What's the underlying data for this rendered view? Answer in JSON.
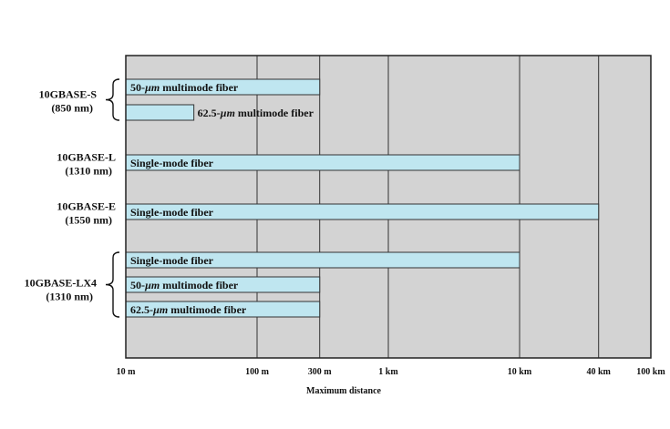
{
  "chart_data": {
    "type": "bar",
    "orientation": "horizontal",
    "xlabel": "Maximum distance",
    "x_scale": "log",
    "x_ticks": [
      {
        "value": 10,
        "label": "10 m"
      },
      {
        "value": 100,
        "label": "100 m"
      },
      {
        "value": 300,
        "label": "300 m"
      },
      {
        "value": 1000,
        "label": "1 km"
      },
      {
        "value": 10000,
        "label": "10 km"
      },
      {
        "value": 40000,
        "label": "40 km"
      },
      {
        "value": 100000,
        "label": "100 km"
      }
    ],
    "xlim": [
      10,
      100000
    ],
    "grid": "vertical",
    "colors": {
      "bar": "#bfe6f0",
      "plot_bg": "#d3d3d3",
      "border": "#222222"
    },
    "groups": [
      {
        "name": "10GBASE-S",
        "wavelength": "(850 nm)",
        "bars": [
          {
            "label": "50-µm multimode fiber",
            "value": 300,
            "label_position": "inside"
          },
          {
            "label": "62.5-µm multimode fiber",
            "value": 33,
            "label_position": "outside"
          }
        ]
      },
      {
        "name": "10GBASE-L",
        "wavelength": "(1310 nm)",
        "bars": [
          {
            "label": "Single-mode fiber",
            "value": 10000,
            "label_position": "inside"
          }
        ]
      },
      {
        "name": "10GBASE-E",
        "wavelength": "(1550 nm)",
        "bars": [
          {
            "label": "Single-mode fiber",
            "value": 40000,
            "label_position": "inside"
          }
        ]
      },
      {
        "name": "10GBASE-LX4",
        "wavelength": "(1310 nm)",
        "bars": [
          {
            "label": "Single-mode fiber",
            "value": 10000,
            "label_position": "inside"
          },
          {
            "label": "50-µm multimode fiber",
            "value": 300,
            "label_position": "inside"
          },
          {
            "label": "62.5-µm multimode fiber",
            "value": 300,
            "label_position": "inside"
          }
        ]
      }
    ]
  }
}
